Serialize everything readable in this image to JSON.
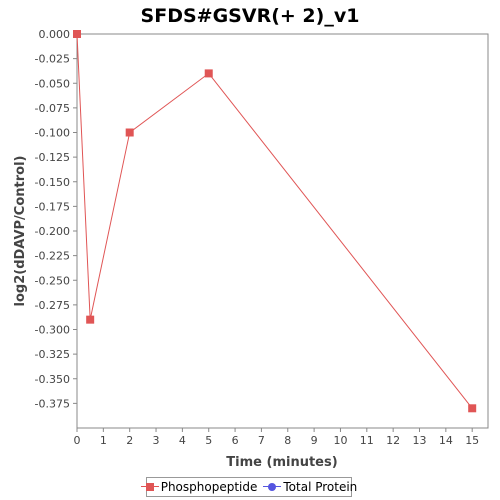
{
  "chart_data": {
    "type": "line",
    "title": "SFDS#GSVR(+ 2)_v1",
    "xlabel": "Time (minutes)",
    "ylabel": "log2(dDAVP/Control)",
    "xlim": [
      0,
      15.6
    ],
    "ylim": [
      -0.4,
      0.0
    ],
    "x_ticks": [
      0,
      1,
      2,
      3,
      4,
      5,
      6,
      7,
      8,
      9,
      10,
      11,
      12,
      13,
      14,
      15
    ],
    "y_ticks": [
      0.0,
      -0.025,
      -0.05,
      -0.075,
      -0.1,
      -0.125,
      -0.15,
      -0.175,
      -0.2,
      -0.225,
      -0.25,
      -0.275,
      -0.3,
      -0.325,
      -0.35,
      -0.375
    ],
    "y_tick_labels": [
      "0.000",
      "-0.025",
      "-0.050",
      "-0.075",
      "-0.100",
      "-0.125",
      "-0.150",
      "-0.175",
      "-0.200",
      "-0.225",
      "-0.250",
      "-0.275",
      "-0.300",
      "-0.325",
      "-0.350",
      "-0.375"
    ],
    "grid": false,
    "legend_position": "bottom-center",
    "series": [
      {
        "name": "Phosphopeptide",
        "color": "#e05555",
        "marker": "square",
        "points": [
          {
            "x": 0,
            "y": 0.0
          },
          {
            "x": 0.5,
            "y": -0.29
          },
          {
            "x": 2,
            "y": -0.1
          },
          {
            "x": 5,
            "y": -0.04
          },
          {
            "x": 15,
            "y": -0.38
          }
        ]
      },
      {
        "name": "Total Protein",
        "color": "#5555e0",
        "marker": "circle",
        "points": []
      }
    ]
  }
}
